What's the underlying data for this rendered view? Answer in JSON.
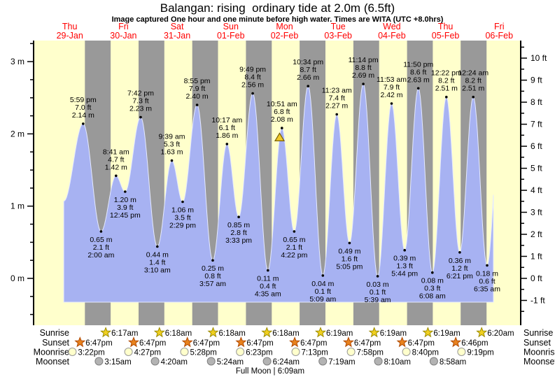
{
  "header": {
    "title": "Balangan: rising  ordinary tide at 2.0m (6.5ft)",
    "subtitle": "Image captured One hour and one minute before high water. Times are WITA (UTC +8.0hrs)"
  },
  "chart_data": {
    "type": "area",
    "title": "Balangan: rising  ordinary tide at 2.0m (6.5ft)",
    "days": [
      {
        "dow": "Thu",
        "date": "29-Jan"
      },
      {
        "dow": "Fri",
        "date": "30-Jan"
      },
      {
        "dow": "Sat",
        "date": "31-Jan"
      },
      {
        "dow": "Sun",
        "date": "01-Feb"
      },
      {
        "dow": "Mon",
        "date": "02-Feb"
      },
      {
        "dow": "Tue",
        "date": "03-Feb"
      },
      {
        "dow": "Wed",
        "date": "04-Feb"
      },
      {
        "dow": "Thu",
        "date": "05-Feb"
      },
      {
        "dow": "Fri",
        "date": "06-Feb"
      }
    ],
    "y_axis_left": {
      "unit": "m",
      "major_ticks": [
        0,
        1,
        2,
        3
      ]
    },
    "y_axis_right": {
      "unit": "ft",
      "major_ticks": [
        -1,
        0,
        1,
        2,
        3,
        4,
        5,
        6,
        7,
        8,
        9,
        10
      ]
    },
    "tide_events": [
      {
        "day": 0,
        "type": "high",
        "time": "5:59 pm",
        "ft": "7.0 ft",
        "m": "2.14 m"
      },
      {
        "day": 1,
        "type": "low",
        "time": "2:00 am",
        "ft": "2.1 ft",
        "m": "0.65 m"
      },
      {
        "day": 1,
        "type": "high",
        "time": "8:41 am",
        "ft": "4.7 ft",
        "m": "1.42 m"
      },
      {
        "day": 1,
        "type": "low",
        "time": "12:45 pm",
        "ft": "3.9 ft",
        "m": "1.20 m"
      },
      {
        "day": 1,
        "type": "high",
        "time": "7:42 pm",
        "ft": "7.3 ft",
        "m": "2.23 m"
      },
      {
        "day": 2,
        "type": "low",
        "time": "3:10 am",
        "ft": "1.4 ft",
        "m": "0.44 m"
      },
      {
        "day": 2,
        "type": "high",
        "time": "9:39 am",
        "ft": "5.3 ft",
        "m": "1.63 m"
      },
      {
        "day": 2,
        "type": "low",
        "time": "2:29 pm",
        "ft": "3.5 ft",
        "m": "1.06 m"
      },
      {
        "day": 2,
        "type": "high",
        "time": "8:55 pm",
        "ft": "7.9 ft",
        "m": "2.40 m"
      },
      {
        "day": 3,
        "type": "low",
        "time": "3:57 am",
        "ft": "0.8 ft",
        "m": "0.25 m"
      },
      {
        "day": 3,
        "type": "high",
        "time": "10:17 am",
        "ft": "6.1 ft",
        "m": "1.86 m"
      },
      {
        "day": 3,
        "type": "low",
        "time": "3:33 pm",
        "ft": "2.8 ft",
        "m": "0.85 m"
      },
      {
        "day": 3,
        "type": "high",
        "time": "9:49 pm",
        "ft": "8.4 ft",
        "m": "2.56 m"
      },
      {
        "day": 4,
        "type": "low",
        "time": "4:35 am",
        "ft": "0.4 ft",
        "m": "0.11 m"
      },
      {
        "day": 4,
        "type": "high",
        "time": "10:51 am",
        "ft": "6.8 ft",
        "m": "2.08 m"
      },
      {
        "day": 4,
        "type": "low",
        "time": "4:22 pm",
        "ft": "2.1 ft",
        "m": "0.65 m"
      },
      {
        "day": 4,
        "type": "high",
        "time": "10:34 pm",
        "ft": "8.7 ft",
        "m": "2.66 m"
      },
      {
        "day": 5,
        "type": "low",
        "time": "5:09 am",
        "ft": "0.1 ft",
        "m": "0.04 m"
      },
      {
        "day": 5,
        "type": "high",
        "time": "11:23 am",
        "ft": "7.4 ft",
        "m": "2.27 m"
      },
      {
        "day": 5,
        "type": "low",
        "time": "5:05 pm",
        "ft": "1.6 ft",
        "m": "0.49 m"
      },
      {
        "day": 5,
        "type": "high",
        "time": "11:14 pm",
        "ft": "8.8 ft",
        "m": "2.69 m"
      },
      {
        "day": 6,
        "type": "low",
        "time": "5:39 am",
        "ft": "0.1 ft",
        "m": "0.03 m"
      },
      {
        "day": 6,
        "type": "high",
        "time": "11:53 am",
        "ft": "7.9 ft",
        "m": "2.42 m"
      },
      {
        "day": 6,
        "type": "low",
        "time": "5:44 pm",
        "ft": "1.3 ft",
        "m": "0.39 m"
      },
      {
        "day": 6,
        "type": "high",
        "time": "11:50 pm",
        "ft": "8.6 ft",
        "m": "2.63 m"
      },
      {
        "day": 7,
        "type": "low",
        "time": "6:08 am",
        "ft": "0.3 ft",
        "m": "0.08 m"
      },
      {
        "day": 7,
        "type": "high",
        "time": "12:22 pm",
        "ft": "8.2 ft",
        "m": "2.51 m"
      },
      {
        "day": 7,
        "type": "low",
        "time": "6:21 pm",
        "ft": "1.2 ft",
        "m": "0.36 m"
      },
      {
        "day": 8,
        "type": "high",
        "time": "12:24 am",
        "ft": "8.2 ft",
        "m": "2.51 m"
      },
      {
        "day": 8,
        "type": "low",
        "time": "6:35 am",
        "ft": "0.6 ft",
        "m": "0.18 m"
      }
    ],
    "current_marker": {
      "attached_event_time": "10:51 am",
      "attached_event_day": 4,
      "level_m": 2.0
    },
    "colors": {
      "day_band": "#ffffcc",
      "night_band": "#999999",
      "tide_fill": "#a7b2f2",
      "tide_edge": "#e4e9ff",
      "day_label": "#ff0000",
      "marker_fill": "#f2ca2a",
      "marker_edge": "#7a6000",
      "sunrise_star_fill": "#f0d020",
      "sunrise_star_edge": "#9a8a00",
      "sunset_star_fill": "#e8821e",
      "sunset_star_edge": "#b04800",
      "moonrise_fill": "#ffffcc",
      "moonrise_edge": "#999999",
      "moonset_fill": "#b3b3b3",
      "moonset_edge": "#808080"
    }
  },
  "almanac": {
    "rows": [
      {
        "id": "sunrise",
        "label": "Sunrise",
        "icon": "sunrise-star-icon",
        "entries": [
          {
            "day": 1,
            "time": "6:17am"
          },
          {
            "day": 2,
            "time": "6:18am"
          },
          {
            "day": 3,
            "time": "6:18am"
          },
          {
            "day": 4,
            "time": "6:18am"
          },
          {
            "day": 5,
            "time": "6:19am"
          },
          {
            "day": 6,
            "time": "6:19am"
          },
          {
            "day": 7,
            "time": "6:19am"
          },
          {
            "day": 8,
            "time": "6:20am"
          }
        ]
      },
      {
        "id": "sunset",
        "label": "Sunset",
        "icon": "sunset-star-icon",
        "entries": [
          {
            "day": 0,
            "time": "6:47pm"
          },
          {
            "day": 1,
            "time": "6:47pm"
          },
          {
            "day": 2,
            "time": "6:47pm"
          },
          {
            "day": 3,
            "time": "6:47pm"
          },
          {
            "day": 4,
            "time": "6:47pm"
          },
          {
            "day": 5,
            "time": "6:47pm"
          },
          {
            "day": 6,
            "time": "6:47pm"
          },
          {
            "day": 7,
            "time": "6:46pm"
          }
        ]
      },
      {
        "id": "moonrise",
        "label": "Moonrise",
        "icon": "moonrise-circle-icon",
        "entries": [
          {
            "day": 0,
            "time": "3:22pm"
          },
          {
            "day": 1,
            "time": "4:27pm"
          },
          {
            "day": 2,
            "time": "5:28pm"
          },
          {
            "day": 3,
            "time": "6:23pm"
          },
          {
            "day": 4,
            "time": "7:13pm"
          },
          {
            "day": 5,
            "time": "7:58pm"
          },
          {
            "day": 6,
            "time": "8:40pm"
          },
          {
            "day": 7,
            "time": "9:19pm"
          }
        ]
      },
      {
        "id": "moonset",
        "label": "Moonset",
        "icon": "moonset-circle-icon",
        "entries": [
          {
            "day": 1,
            "time": "3:15am"
          },
          {
            "day": 2,
            "time": "4:20am"
          },
          {
            "day": 3,
            "time": "5:24am"
          },
          {
            "day": 4,
            "time": "6:24am"
          },
          {
            "day": 5,
            "time": "7:19am"
          },
          {
            "day": 6,
            "time": "8:10am"
          },
          {
            "day": 7,
            "time": "8:58am"
          }
        ]
      }
    ],
    "note": "Full Moon | 6:09am"
  }
}
